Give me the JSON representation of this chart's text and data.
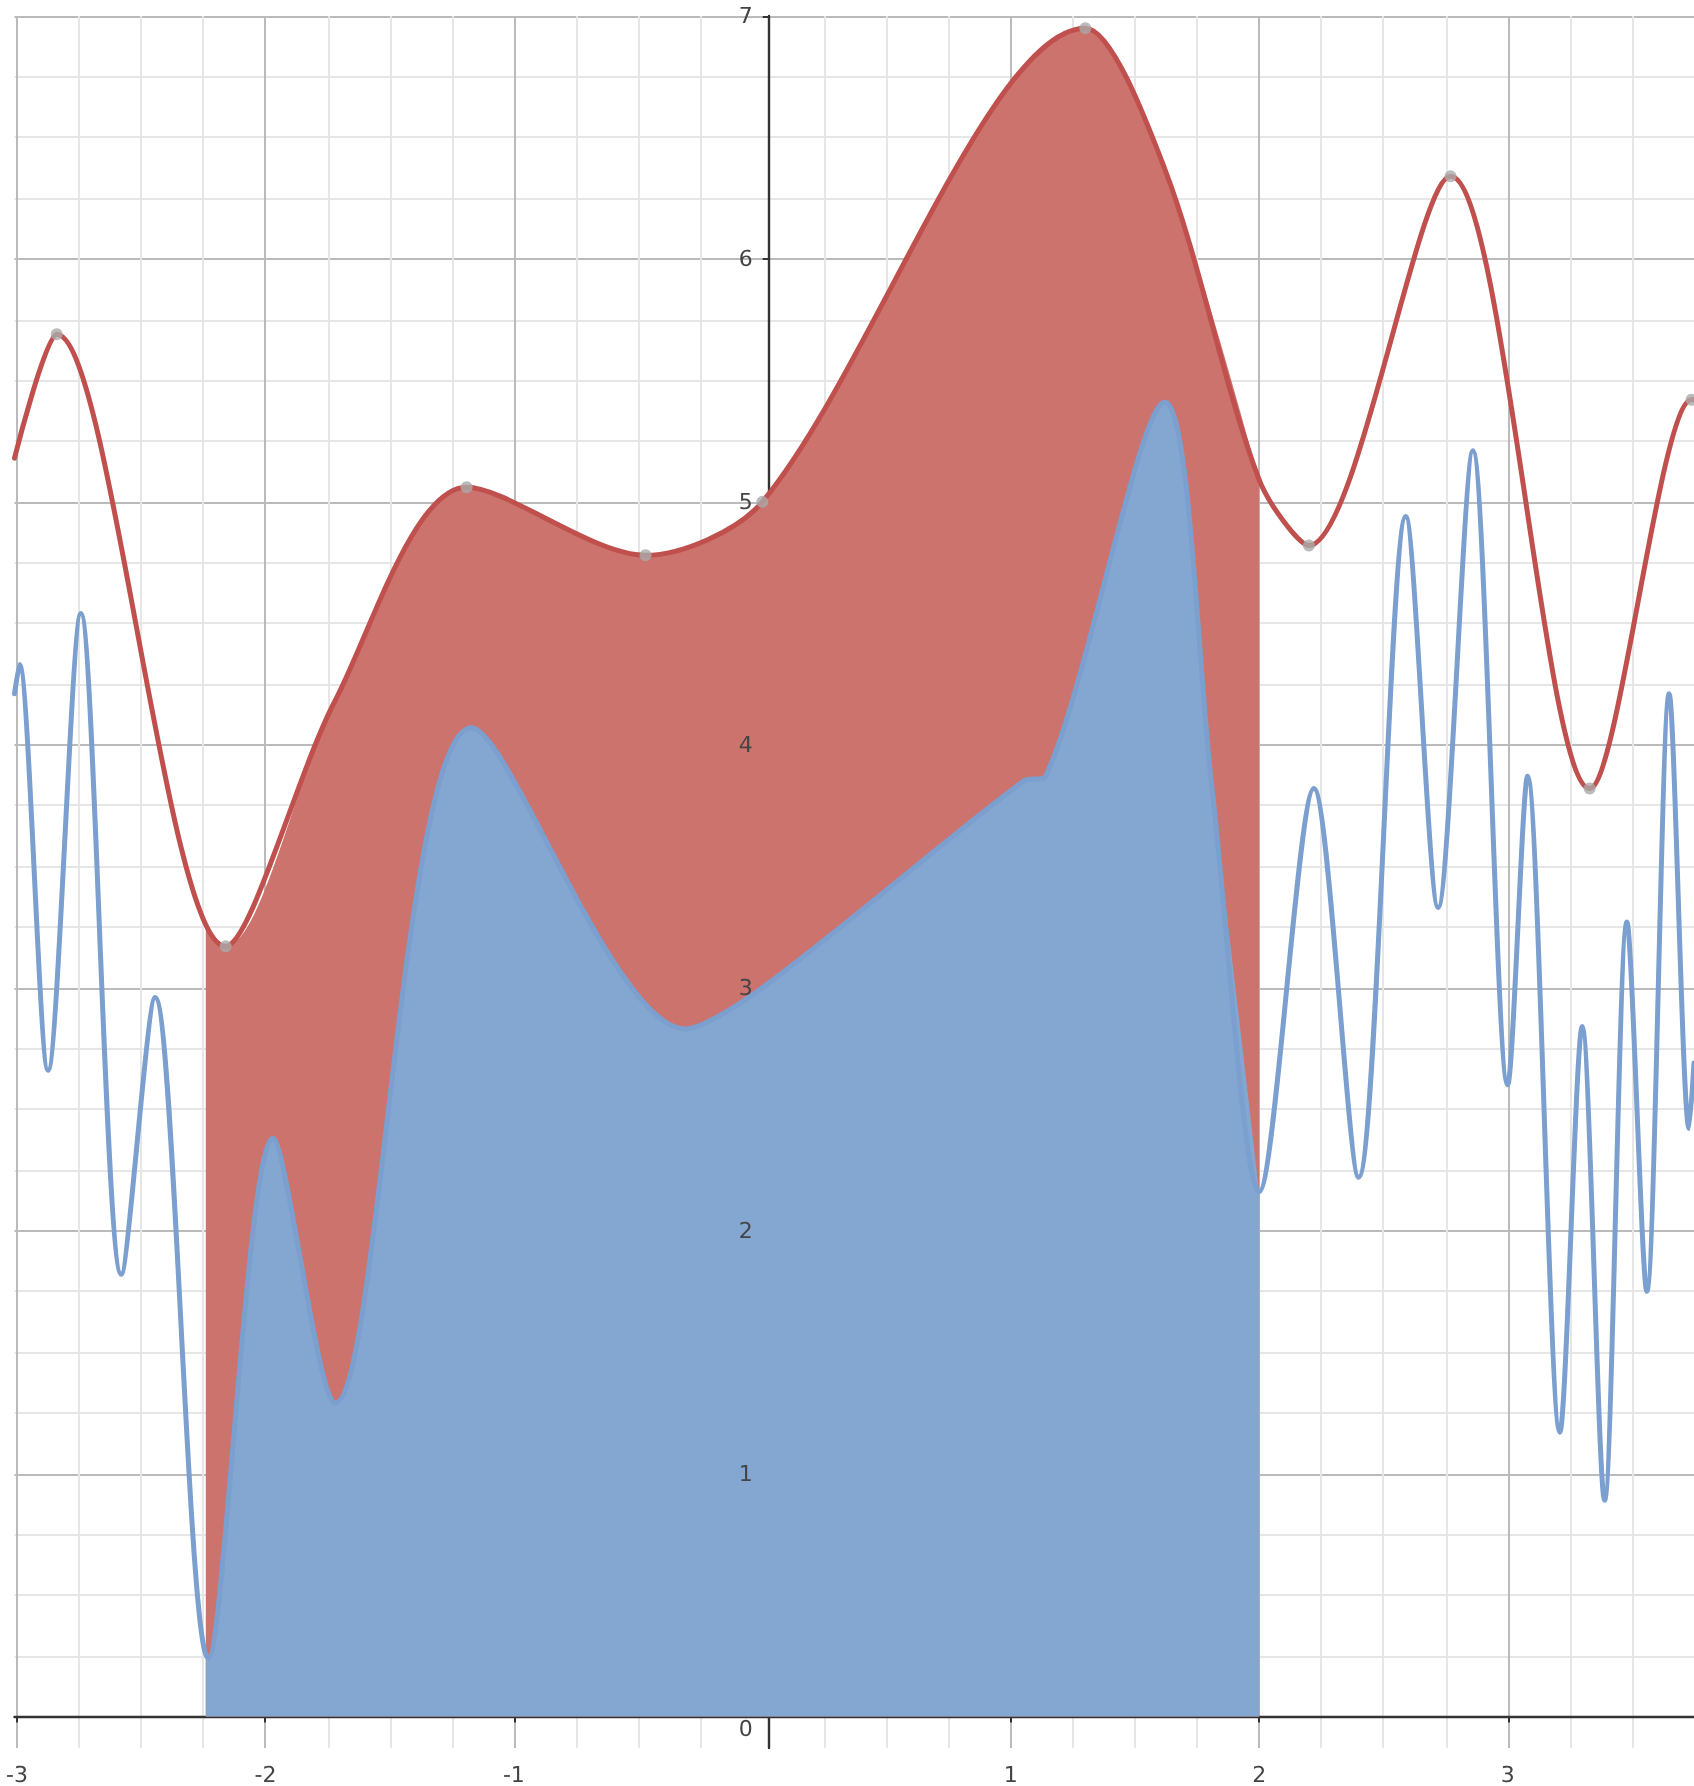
{
  "chart_data": {
    "type": "line",
    "xlim": [
      -3.01,
      3.75
    ],
    "ylim": [
      -0.13,
      7.0
    ],
    "xticks": [
      -3,
      -2,
      -1,
      1,
      2,
      3
    ],
    "yticks": [
      0,
      1,
      2,
      3,
      4,
      5,
      6,
      7
    ],
    "grid": true,
    "series": [
      {
        "type": "area",
        "color": "#cc736d",
        "x": [
          -2.24,
          -2.16,
          -1.72,
          -1.19,
          -0.47,
          0,
          1.3,
          1.62,
          2.0
        ],
        "values": [
          3.25,
          3.17,
          4.18,
          5.06,
          4.78,
          5.0,
          6.95,
          6.37,
          5.09
        ]
      },
      {
        "type": "area",
        "color": "#84a7d1",
        "x": [
          -2.24,
          -2.23,
          -1.97,
          -1.72,
          -1.17,
          -0.31,
          0,
          1.05,
          1.14,
          1.62,
          1.81,
          2.0
        ],
        "values": [
          0.3,
          0.24,
          2.38,
          1.29,
          4.07,
          2.83,
          3.0,
          3.85,
          3.87,
          5.41,
          3.82,
          2.16
        ]
      },
      {
        "color": "#c0504d",
        "x": [
          -3.01,
          -2.84,
          -2.16,
          -1.72,
          -1.19,
          -0.47,
          0,
          1.3,
          1.62,
          2.0,
          2.2,
          2.77,
          3.33,
          3.74,
          3.75
        ],
        "values": [
          5.18,
          5.69,
          3.17,
          4.18,
          5.06,
          4.78,
          5.0,
          6.95,
          6.37,
          5.09,
          4.82,
          6.34,
          3.82,
          5.42,
          5.42
        ]
      },
      {
        "color": "#7b9fcf",
        "x": [
          -3.01,
          -2.99,
          -2.875,
          -2.743,
          -2.58,
          -2.444,
          -2.23,
          -1.97,
          -1.72,
          -1.17,
          -0.31,
          0,
          1.05,
          1.14,
          1.62,
          1.81,
          2.0,
          2.22,
          2.4,
          2.59,
          2.72,
          2.86,
          3.0,
          3.08,
          3.21,
          3.3,
          3.39,
          3.48,
          3.56,
          3.65,
          3.73,
          3.75
        ],
        "values": [
          4.21,
          4.33,
          2.66,
          4.54,
          1.82,
          2.96,
          0.24,
          2.38,
          1.29,
          4.07,
          2.83,
          3.0,
          3.85,
          3.87,
          5.41,
          3.82,
          2.16,
          3.82,
          2.22,
          4.94,
          3.33,
          5.21,
          2.6,
          3.87,
          1.17,
          2.84,
          0.89,
          3.27,
          1.75,
          4.21,
          2.42,
          2.69
        ]
      },
      {
        "type": "scatter",
        "color": "#aaaaaa",
        "x": [
          -2.84,
          -2.16,
          -1.19,
          -0.47,
          0,
          1.3,
          2.2,
          2.77,
          3.33,
          3.74
        ],
        "values": [
          5.69,
          3.17,
          5.06,
          4.78,
          5.0,
          6.95,
          4.82,
          6.34,
          3.82,
          5.42
        ]
      }
    ]
  }
}
